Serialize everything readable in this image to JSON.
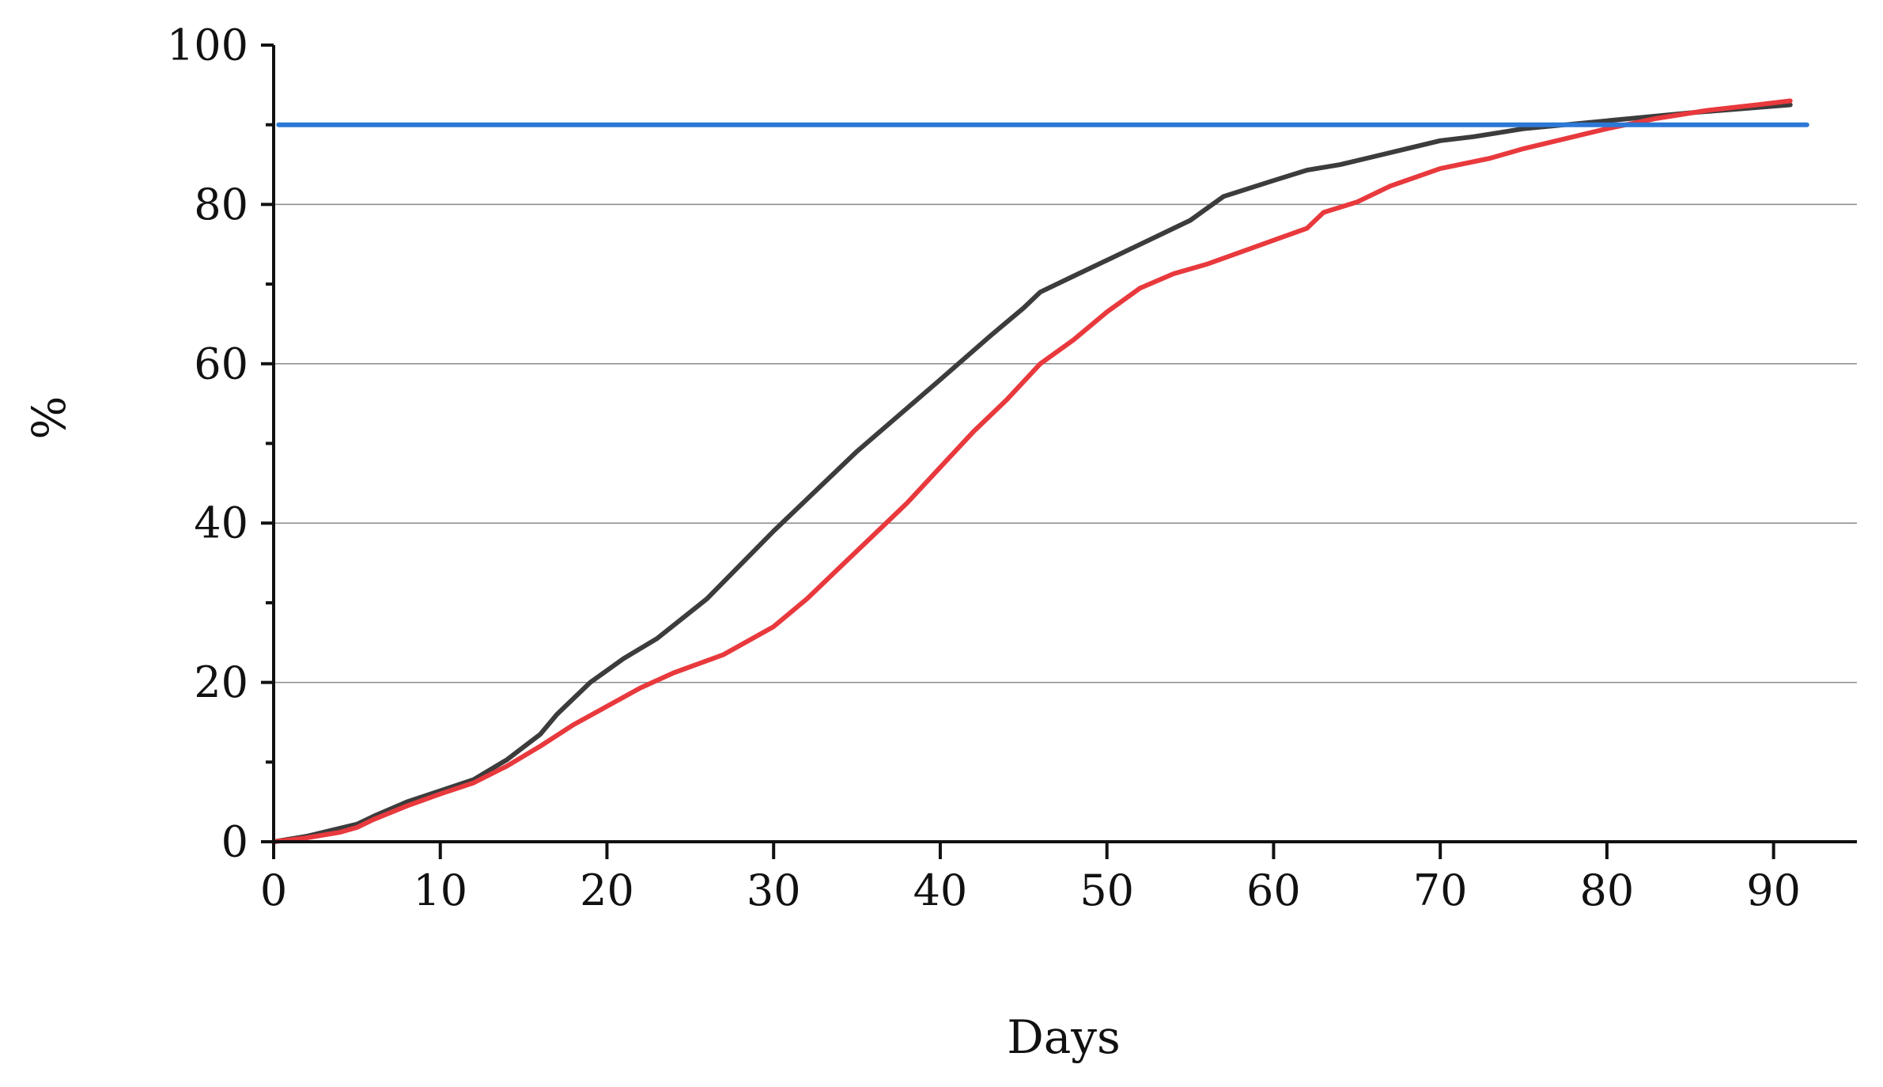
{
  "chart_data": {
    "type": "line",
    "title": "",
    "xlabel": "Days",
    "ylabel": "%",
    "xlim": [
      0,
      95
    ],
    "ylim": [
      0,
      100
    ],
    "x_ticks": [
      0,
      10,
      20,
      30,
      40,
      50,
      60,
      70,
      80,
      90
    ],
    "y_ticks": [
      0,
      20,
      40,
      60,
      80,
      100
    ],
    "y_minor_step": 10,
    "grid": "horizontal major",
    "legend": "none",
    "series": [
      {
        "color": "#3c3c3c",
        "points": [
          [
            0,
            0
          ],
          [
            2,
            0.7
          ],
          [
            3,
            1.2
          ],
          [
            5,
            2.2
          ],
          [
            6,
            3.2
          ],
          [
            8,
            5
          ],
          [
            10,
            6.4
          ],
          [
            12,
            7.8
          ],
          [
            14,
            10.3
          ],
          [
            16,
            13.5
          ],
          [
            17,
            16
          ],
          [
            19,
            20
          ],
          [
            21,
            23
          ],
          [
            23,
            25.5
          ],
          [
            26,
            30.5
          ],
          [
            30,
            39
          ],
          [
            35,
            49
          ],
          [
            40,
            58
          ],
          [
            43,
            63.5
          ],
          [
            45,
            67
          ],
          [
            46,
            69
          ],
          [
            48,
            71
          ],
          [
            50,
            73
          ],
          [
            52,
            75
          ],
          [
            55,
            78
          ],
          [
            57,
            81
          ],
          [
            60,
            83
          ],
          [
            62,
            84.3
          ],
          [
            64,
            85
          ],
          [
            66,
            86
          ],
          [
            68,
            87
          ],
          [
            70,
            88
          ],
          [
            72,
            88.5
          ],
          [
            75,
            89.5
          ],
          [
            80,
            90.5
          ],
          [
            85,
            91.5
          ],
          [
            91,
            92.5
          ]
        ]
      },
      {
        "color": "#e8393d",
        "points": [
          [
            0,
            0
          ],
          [
            2,
            0.5
          ],
          [
            4,
            1.2
          ],
          [
            5,
            1.8
          ],
          [
            6,
            2.8
          ],
          [
            8,
            4.5
          ],
          [
            10,
            6
          ],
          [
            12,
            7.4
          ],
          [
            14,
            9.5
          ],
          [
            16,
            12
          ],
          [
            18,
            14.7
          ],
          [
            20,
            17
          ],
          [
            22,
            19.3
          ],
          [
            24,
            21.2
          ],
          [
            27,
            23.5
          ],
          [
            30,
            27
          ],
          [
            32,
            30.5
          ],
          [
            34,
            34.5
          ],
          [
            36,
            38.5
          ],
          [
            38,
            42.5
          ],
          [
            40,
            47
          ],
          [
            42,
            51.5
          ],
          [
            44,
            55.5
          ],
          [
            46,
            60
          ],
          [
            48,
            63
          ],
          [
            50,
            66.5
          ],
          [
            52,
            69.5
          ],
          [
            54,
            71.3
          ],
          [
            56,
            72.5
          ],
          [
            58,
            74
          ],
          [
            60,
            75.5
          ],
          [
            62,
            77
          ],
          [
            63,
            79
          ],
          [
            65,
            80.3
          ],
          [
            67,
            82.3
          ],
          [
            70,
            84.5
          ],
          [
            73,
            85.8
          ],
          [
            75,
            87
          ],
          [
            78,
            88.5
          ],
          [
            80,
            89.5
          ],
          [
            83,
            90.8
          ],
          [
            86,
            91.8
          ],
          [
            89,
            92.5
          ],
          [
            91,
            93
          ]
        ]
      },
      {
        "color": "#2b78d6",
        "points": [
          [
            0.3,
            90
          ],
          [
            92,
            90
          ]
        ]
      }
    ]
  }
}
